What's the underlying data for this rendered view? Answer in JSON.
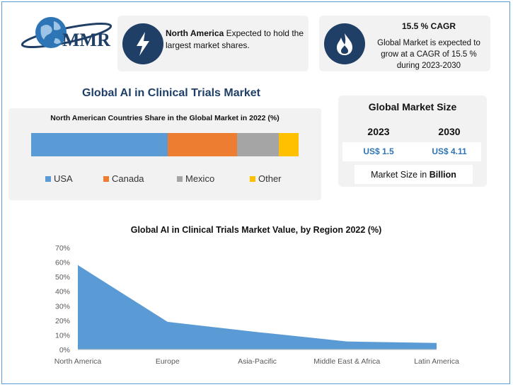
{
  "logo": {
    "text": "MMR"
  },
  "cards": {
    "north_america": {
      "bold": "North America",
      "rest": " Expected to hold the largest market shares."
    },
    "cagr": {
      "title": "15.5 % CAGR",
      "body": "Global Market is expected to grow at a CAGR of 15.5 % during 2023-2030"
    }
  },
  "main_title": "Global AI in Clinical Trials Market",
  "market_size": {
    "title": "Global Market Size",
    "year1": "2023",
    "year2": "2030",
    "value1": "US$ 1.5",
    "value2": "US$ 4.11",
    "unit_prefix": "Market Size in ",
    "unit_bold": "Billion"
  },
  "colors": {
    "usa": "#5b9bd5",
    "canada": "#ed7d31",
    "mexico": "#a5a5a5",
    "other": "#ffc000",
    "area": "#5b9bd5"
  },
  "chart_data": [
    {
      "type": "bar",
      "stacked": "100%",
      "title": "North American Countries Share in the Global Market in 2022 (%)",
      "legend": "bottom",
      "series": [
        {
          "name": "USA",
          "values": [
            51
          ]
        },
        {
          "name": "Canada",
          "values": [
            26
          ]
        },
        {
          "name": "Mexico",
          "values": [
            15.5
          ]
        },
        {
          "name": "Other",
          "values": [
            7.5
          ]
        }
      ]
    },
    {
      "type": "area",
      "title": "Global AI in Clinical Trials Market Value, by Region 2022 (%)",
      "categories": [
        "North America",
        "Europe",
        "Asia-Pacific",
        "Middle East & Africa",
        "Latin America"
      ],
      "values": [
        58,
        19,
        12,
        5.5,
        4.5
      ],
      "ylim": [
        0,
        70
      ],
      "yticks": [
        "0%",
        "10%",
        "20%",
        "30%",
        "40%",
        "50%",
        "60%",
        "70%"
      ],
      "grid": false
    }
  ]
}
